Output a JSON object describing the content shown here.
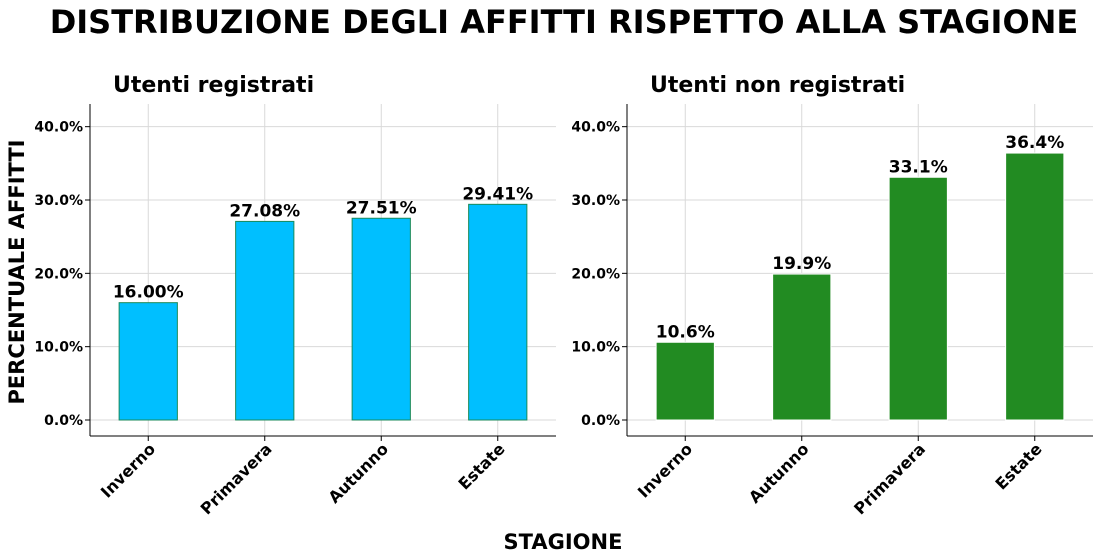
{
  "title": "DISTRIBUZIONE DEGLI AFFITTI RISPETTO ALLA STAGIONE",
  "ylabel": "PERCENTUALE AFFITTI",
  "xlabel": "STAGIONE",
  "chart_data": [
    {
      "type": "bar",
      "title": "Utenti registrati",
      "categories": [
        "Inverno",
        "Primavera",
        "Autunno",
        "Estate"
      ],
      "values": [
        16.0,
        27.08,
        27.51,
        29.41
      ],
      "data_labels": [
        "16.00%",
        "27.08%",
        "27.51%",
        "29.41%"
      ],
      "ylim": [
        0,
        42
      ],
      "yticks": [
        0,
        10,
        20,
        30,
        40
      ],
      "ytick_labels": [
        "0.0%",
        "10.0%",
        "20.0%",
        "30.0%",
        "40.0%"
      ],
      "color": "#00BFFF",
      "edge_color": "#1a8a5a",
      "grid": true
    },
    {
      "type": "bar",
      "title": "Utenti non registrati",
      "categories": [
        "Inverno",
        "Autunno",
        "Primavera",
        "Estate"
      ],
      "values": [
        10.6,
        19.9,
        33.1,
        36.4
      ],
      "data_labels": [
        "10.6%",
        "19.9%",
        "33.1%",
        "36.4%"
      ],
      "ylim": [
        0,
        42
      ],
      "yticks": [
        0,
        10,
        20,
        30,
        40
      ],
      "ytick_labels": [
        "0.0%",
        "10.0%",
        "20.0%",
        "30.0%",
        "40.0%"
      ],
      "color": "#228B22",
      "edge_color": "#ffffff",
      "grid": true
    }
  ]
}
